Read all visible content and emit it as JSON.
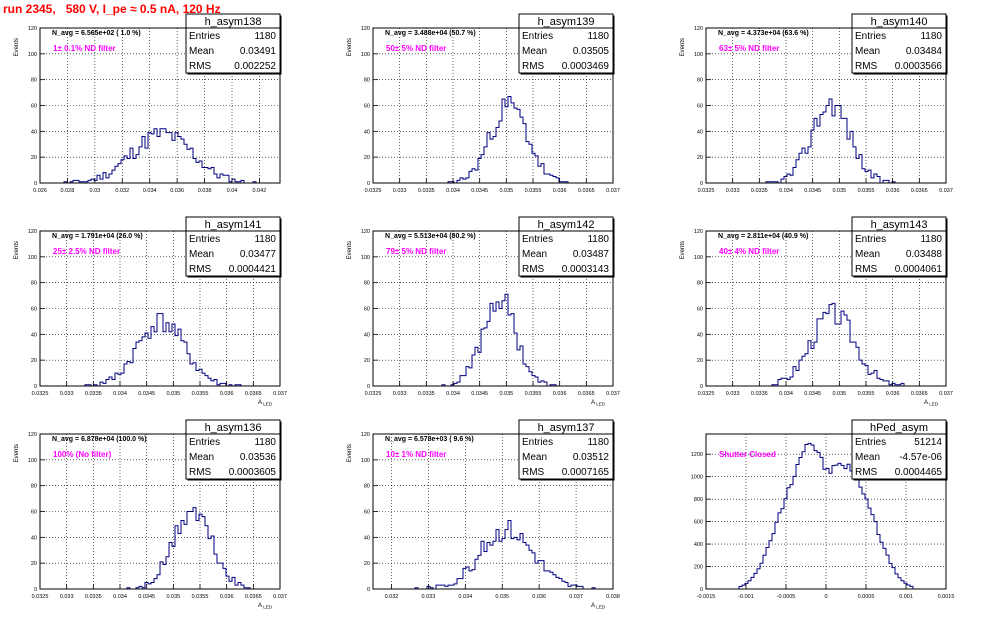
{
  "page": {
    "title": "run 2345,   580 V, I_pe ≈ 0.5 nA, 120 Hz"
  },
  "colors": {
    "hist": "#000080",
    "note": "#ff00ff",
    "title": "#ff0000",
    "grid": "#000000"
  },
  "stat_labels": {
    "entries": "Entries",
    "mean": "Mean",
    "rms": "RMS"
  },
  "chart_data": [
    {
      "type": "histogram",
      "name": "h_asym138",
      "nline": "N_avg = 6.565e+02 ( 1.0 %)",
      "note": "1± 0.1% ND filter",
      "entries": "1180",
      "mean": "0.03491",
      "rms": "0.002252",
      "ylabel": "Events",
      "xlabel": "",
      "xlim": [
        0.026,
        0.0435
      ],
      "ylim": [
        0,
        120
      ],
      "yticks": [
        0,
        20,
        40,
        60,
        80,
        100,
        120
      ],
      "xticks": [
        0.026,
        0.028,
        0.03,
        0.032,
        0.034,
        0.036,
        0.038,
        0.04,
        0.042
      ],
      "xticklabels": [
        "0.026",
        "0.028",
        "0.03",
        "0.032",
        "0.034",
        "0.036",
        "0.038",
        "0.04",
        "0.042"
      ],
      "peak": 0.0349,
      "sigma": 0.0022,
      "height": 38,
      "seed": 11
    },
    {
      "type": "histogram",
      "name": "h_asym139",
      "nline": "N_avg = 3.488e+04 (50.7 %)",
      "note": "50± 5% ND filter",
      "entries": "1180",
      "mean": "0.03505",
      "rms": "0.0003469",
      "ylabel": "Events",
      "xlabel": "",
      "xlim": [
        0.0325,
        0.037
      ],
      "ylim": [
        0,
        120
      ],
      "yticks": [
        0,
        20,
        40,
        60,
        80,
        100,
        120
      ],
      "xticks": [
        0.0325,
        0.033,
        0.0335,
        0.034,
        0.0345,
        0.035,
        0.0355,
        0.036,
        0.0365,
        0.037
      ],
      "xticklabels": [
        "0.0325",
        "0.033",
        "0.0335",
        "0.034",
        "0.0345",
        "0.035",
        "0.0355",
        "0.036",
        "0.0365",
        "0.037"
      ],
      "peak": 0.03505,
      "sigma": 0.00035,
      "height": 60,
      "seed": 23
    },
    {
      "type": "histogram",
      "name": "h_asym140",
      "nline": "N_avg = 4.373e+04 (63.6 %)",
      "note": "63± 5% ND filter",
      "entries": "1180",
      "mean": "0.03484",
      "rms": "0.0003566",
      "ylabel": "Events",
      "xlabel": "",
      "xlim": [
        0.0325,
        0.037
      ],
      "ylim": [
        0,
        120
      ],
      "yticks": [
        0,
        20,
        40,
        60,
        80,
        100,
        120
      ],
      "xticks": [
        0.0325,
        0.033,
        0.0335,
        0.034,
        0.0345,
        0.035,
        0.0355,
        0.036,
        0.0365,
        0.037
      ],
      "xticklabels": [
        "0.0325",
        "0.033",
        "0.0335",
        "0.034",
        "0.0345",
        "0.035",
        "0.0355",
        "0.036",
        "0.0365",
        "0.037"
      ],
      "peak": 0.03484,
      "sigma": 0.00036,
      "height": 62,
      "seed": 37
    },
    {
      "type": "histogram",
      "name": "h_asym141",
      "nline": "N_avg = 1.791e+04 (26.0 %)",
      "note": "25± 2.5% ND filter",
      "entries": "1180",
      "mean": "0.03477",
      "rms": "0.0004421",
      "ylabel": "Events",
      "xlabel": "A",
      "xlim": [
        0.0325,
        0.037
      ],
      "ylim": [
        0,
        120
      ],
      "yticks": [
        0,
        20,
        40,
        60,
        80,
        100,
        120
      ],
      "xticks": [
        0.0325,
        0.033,
        0.0335,
        0.034,
        0.0345,
        0.035,
        0.0355,
        0.036,
        0.0365,
        0.037
      ],
      "xticklabels": [
        "0.0325",
        "0.033",
        "0.0335",
        "0.034",
        "0.0345",
        "0.035",
        "0.0355",
        "0.036",
        "0.0365",
        "0.037"
      ],
      "peak": 0.03477,
      "sigma": 0.00044,
      "height": 50,
      "seed": 41
    },
    {
      "type": "histogram",
      "name": "h_asym142",
      "nline": "N_avg = 5.513e+04 (80.2 %)",
      "note": "79± 5% ND filter",
      "entries": "1180",
      "mean": "0.03487",
      "rms": "0.0003143",
      "ylabel": "Events",
      "xlabel": "A",
      "xlim": [
        0.0325,
        0.037
      ],
      "ylim": [
        0,
        120
      ],
      "yticks": [
        0,
        20,
        40,
        60,
        80,
        100,
        120
      ],
      "xticks": [
        0.0325,
        0.033,
        0.0335,
        0.034,
        0.0345,
        0.035,
        0.0355,
        0.036,
        0.0365,
        0.037
      ],
      "xticklabels": [
        "0.0325",
        "0.033",
        "0.0335",
        "0.034",
        "0.0345",
        "0.035",
        "0.0355",
        "0.036",
        "0.0365",
        "0.037"
      ],
      "peak": 0.03487,
      "sigma": 0.00031,
      "height": 68,
      "seed": 53
    },
    {
      "type": "histogram",
      "name": "h_asym143",
      "nline": "N_avg = 2.811e+04 (40.9 %)",
      "note": "40± 4% ND filter",
      "entries": "1180",
      "mean": "0.03488",
      "rms": "0.0004061",
      "ylabel": "Events",
      "xlabel": "A",
      "xlim": [
        0.0325,
        0.037
      ],
      "ylim": [
        0,
        120
      ],
      "yticks": [
        0,
        20,
        40,
        60,
        80,
        100,
        120
      ],
      "xticks": [
        0.0325,
        0.033,
        0.0335,
        0.034,
        0.0345,
        0.035,
        0.0355,
        0.036,
        0.0365,
        0.037
      ],
      "xticklabels": [
        "0.0325",
        "0.033",
        "0.0335",
        "0.034",
        "0.0345",
        "0.035",
        "0.0355",
        "0.036",
        "0.0365",
        "0.037"
      ],
      "peak": 0.03488,
      "sigma": 0.00041,
      "height": 56,
      "seed": 67
    },
    {
      "type": "histogram",
      "name": "h_asym136",
      "nline": "N_avg = 6.878e+04 (100.0 %)",
      "note": "100% (No filter)",
      "entries": "1180",
      "mean": "0.03536",
      "rms": "0.0003605",
      "ylabel": "Events",
      "xlabel": "A",
      "xlim": [
        0.0325,
        0.037
      ],
      "ylim": [
        0,
        120
      ],
      "yticks": [
        0,
        20,
        40,
        60,
        80,
        100,
        120
      ],
      "xticks": [
        0.0325,
        0.033,
        0.0335,
        0.034,
        0.0345,
        0.035,
        0.0355,
        0.036,
        0.0365,
        0.037
      ],
      "xticklabels": [
        "0.0325",
        "0.033",
        "0.0335",
        "0.034",
        "0.0345",
        "0.035",
        "0.0355",
        "0.036",
        "0.0365",
        "0.037"
      ],
      "peak": 0.03536,
      "sigma": 0.00036,
      "height": 60,
      "seed": 71
    },
    {
      "type": "histogram",
      "name": "h_asym137",
      "nline": "N_avg = 6.578e+03 ( 9.6 %)",
      "note": "10± 1% ND filter",
      "entries": "1180",
      "mean": "0.03512",
      "rms": "0.0007165",
      "ylabel": "Events",
      "xlabel": "A",
      "xlim": [
        0.0315,
        0.038
      ],
      "ylim": [
        0,
        120
      ],
      "yticks": [
        0,
        20,
        40,
        60,
        80,
        100,
        120
      ],
      "xticks": [
        0.032,
        0.033,
        0.034,
        0.035,
        0.036,
        0.037,
        0.038
      ],
      "xticklabels": [
        "0.032",
        "0.033",
        "0.034",
        "0.035",
        "0.036",
        "0.037",
        "0.038"
      ],
      "peak": 0.03512,
      "sigma": 0.00072,
      "height": 46,
      "seed": 83
    },
    {
      "type": "histogram",
      "name": "hPed_asym",
      "nline": "",
      "note": "Shutter Closed",
      "entries": "51214",
      "mean": "-4.57e-06",
      "rms": "0.0004465",
      "ylabel": "",
      "xlabel": "",
      "xlim": [
        -0.0015,
        0.0015
      ],
      "ylim": [
        0,
        1380
      ],
      "yticks": [
        0,
        200,
        400,
        600,
        800,
        1000,
        1200
      ],
      "xticks": [
        -0.0015,
        -0.001,
        -0.0005,
        0,
        0.0005,
        0.001,
        0.0015
      ],
      "xticklabels": [
        "-0.0015",
        "-0.001",
        "-0.0005",
        "0",
        "0.0005",
        "0.001",
        "0.0015"
      ],
      "bimodal": true,
      "seed": 97
    }
  ]
}
